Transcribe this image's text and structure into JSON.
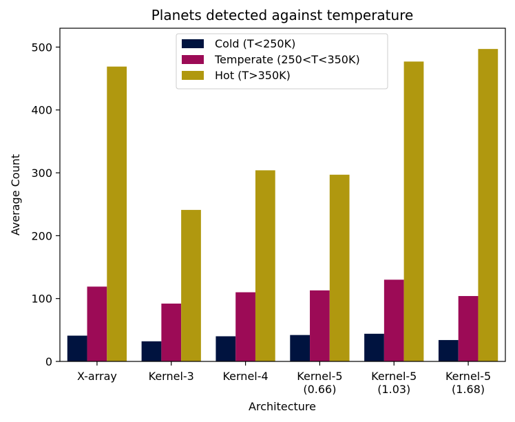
{
  "chart_data": {
    "type": "bar",
    "title": "Planets detected against temperature",
    "xlabel": "Architecture",
    "ylabel": "Average Count",
    "ylim": [
      0,
      530
    ],
    "yticks": [
      0,
      100,
      200,
      300,
      400,
      500
    ],
    "ytick_labels": [
      "0",
      "100",
      "200",
      "300",
      "400",
      "500"
    ],
    "legend_position": "top-center",
    "categories": [
      [
        "X-array"
      ],
      [
        "Kernel-3"
      ],
      [
        "Kernel-4"
      ],
      [
        "Kernel-5",
        "(0.66)"
      ],
      [
        "Kernel-5",
        "(1.03)"
      ],
      [
        "Kernel-5",
        "(1.68)"
      ]
    ],
    "series": [
      {
        "name": "Cold (T<250K)",
        "color": "#00133f",
        "values": [
          41,
          32,
          40,
          42,
          44,
          34
        ]
      },
      {
        "name": "Temperate (250<T<350K)",
        "color": "#9c0b56",
        "values": [
          119,
          92,
          110,
          113,
          130,
          104
        ]
      },
      {
        "name": "Hot (T>350K)",
        "color": "#b0980f",
        "values": [
          469,
          241,
          304,
          297,
          477,
          497
        ]
      }
    ]
  }
}
